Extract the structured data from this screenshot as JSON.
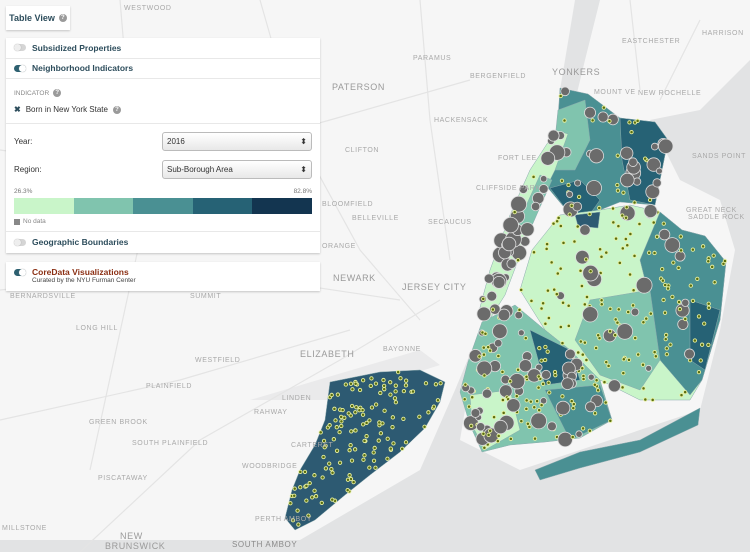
{
  "table_view": {
    "label": "Table View"
  },
  "layers": {
    "subsidized": {
      "label": "Subsidized Properties",
      "enabled": false
    },
    "neighborhood": {
      "label": "Neighborhood Indicators",
      "enabled": true
    },
    "geographic": {
      "label": "Geographic Boundaries",
      "enabled": false
    }
  },
  "indicator": {
    "heading": "INDICATOR",
    "value": "Born in New York State"
  },
  "filters": {
    "year_label": "Year:",
    "year_value": "2016",
    "region_label": "Region:",
    "region_value": "Sub-Borough Area"
  },
  "legend": {
    "min": "26.3%",
    "max": "82.8%",
    "colors": [
      "#c9f5c9",
      "#80c4ae",
      "#4a9093",
      "#266275",
      "#133550"
    ],
    "no_data": "No data",
    "no_data_color": "#888888"
  },
  "coredata": {
    "label": "CoreData Visualizations",
    "enabled": true,
    "subtitle": "Curated by the NYU Furman Center"
  },
  "map_labels": [
    "WESTWOOD",
    "PARAMUS",
    "BERGENFIELD",
    "YONKERS",
    "EASTCHESTER",
    "HARRISON",
    "MOUNT VE",
    "NEW ROCHELLE",
    "PATERSON",
    "HACKENSACK",
    "CLIFTON",
    "FORT LEE",
    "SANDS POINT",
    "CLIFFSIDE PARK",
    "BLOOMFIELD",
    "GREAT NECK",
    "BELLEVILLE",
    "SECAUCUS",
    "SADDLE ROCK",
    "ORANGE",
    "NEWARK",
    "JERSEY CITY",
    "BERNARDSVILLE",
    "SUMMIT",
    "LONG HILL",
    "ELIZABETH",
    "BAYONNE",
    "WESTFIELD",
    "PLAINFIELD",
    "LINDEN",
    "RAHWAY",
    "GREEN BROOK",
    "SOUTH PLAINFIELD",
    "CARTERET",
    "WOODBRIDGE",
    "PISCATAWAY",
    "PERTH AMBOY",
    "MILLSTONE",
    "NEW",
    "BRUNSWICK",
    "SOUTH AMBOY"
  ]
}
